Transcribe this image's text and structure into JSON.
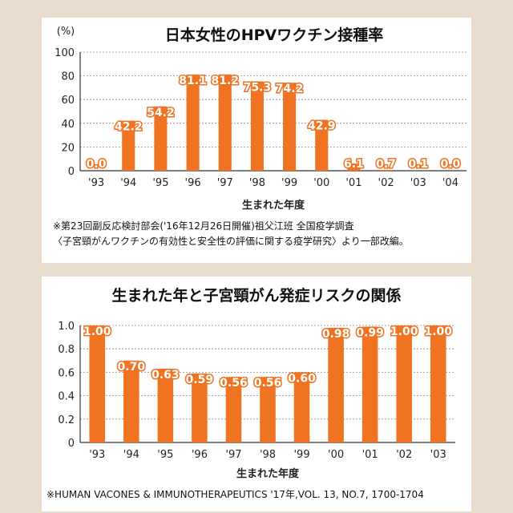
{
  "chart_data": [
    {
      "type": "bar",
      "title": "日本女性のHPVワクチン接種率",
      "unit_label": "(%)",
      "xlabel": "生まれた年度",
      "ylabel": "",
      "ylim": [
        0,
        100
      ],
      "yticks": [
        "0",
        "20",
        "40",
        "60",
        "80",
        "100"
      ],
      "categories": [
        "'93",
        "'94",
        "'95",
        "'96",
        "'97",
        "'98",
        "'99",
        "'00",
        "'01",
        "'02",
        "'03",
        "'04"
      ],
      "values": [
        0.0,
        42.2,
        54.2,
        81.1,
        81.2,
        75.3,
        74.2,
        42.9,
        6.1,
        0.7,
        0.1,
        0.0
      ],
      "value_labels": [
        "0.0",
        "42.2",
        "54.2",
        "81.1",
        "81.2",
        "75.3",
        "74.2",
        "42.9",
        "6.1",
        "0.7",
        "0.1",
        "0.0"
      ],
      "grid": true,
      "bar_color": "#f07322",
      "notes": [
        "※第23回副反応検討部会('16年12月26日開催)祖父江班 全国疫学調査",
        "〈子宮頸がんワクチンの有効性と安全性の評価に関する疫学研究〉より一部改編。"
      ]
    },
    {
      "type": "bar",
      "title": "生まれた年と子宮頸がん発症リスクの関係",
      "xlabel": "生まれた年度",
      "ylabel": "",
      "ylim": [
        0,
        1.0
      ],
      "yticks": [
        "0",
        "0.2",
        "0.4",
        "0.6",
        "0.8",
        "1.0"
      ],
      "categories": [
        "'93",
        "'94",
        "'95",
        "'96",
        "'97",
        "'98",
        "'99",
        "'00",
        "'01",
        "'02",
        "'03"
      ],
      "values": [
        1.0,
        0.7,
        0.63,
        0.59,
        0.56,
        0.56,
        0.6,
        0.98,
        0.99,
        1.0,
        1.0
      ],
      "value_labels": [
        "1.00",
        "0.70",
        "0.63",
        "0.59",
        "0.56",
        "0.56",
        "0.60",
        "0.98",
        "0.99",
        "1.00",
        "1.00"
      ],
      "grid": true,
      "bar_color": "#f07322",
      "notes": [
        "※HUMAN VACONES & IMMUNOTHERAPEUTICS '17年,VOL. 13, NO.7, 1700-1704"
      ]
    }
  ]
}
